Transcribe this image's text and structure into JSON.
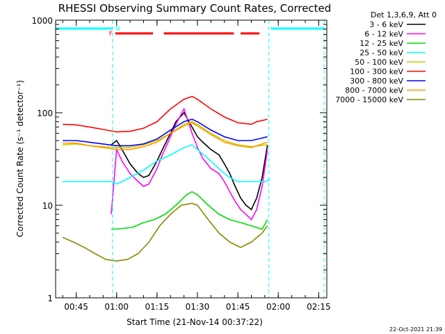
{
  "chart_data": {
    "type": "line",
    "title": "RHESSI Observing Summary Count Rates, Corrected",
    "xlabel": "Start Time (21-Nov-14 00:37:22)",
    "ylabel": "Corrected Count Rate (s⁻¹ detector⁻¹)",
    "yscale": "log",
    "ylim": [
      1,
      1000
    ],
    "xlim_minutes": [
      37.37,
      138
    ],
    "x_units": "minutes after 00:00 UT",
    "x_ticks": [
      {
        "label": "00:45",
        "minute": 45
      },
      {
        "label": "01:00",
        "minute": 60
      },
      {
        "label": "01:15",
        "minute": 75
      },
      {
        "label": "01:30",
        "minute": 90
      },
      {
        "label": "01:45",
        "minute": 105
      },
      {
        "label": "02:00",
        "minute": 120
      },
      {
        "label": "02:15",
        "minute": 135
      }
    ],
    "y_ticks": [
      {
        "label": "1",
        "value": 1
      },
      {
        "label": "10",
        "value": 10
      },
      {
        "label": "100",
        "value": 100
      },
      {
        "label": "1000",
        "value": 1000
      }
    ],
    "grid": false,
    "legend_position": "outside-right",
    "legend_title": "Det 1,3,6,9, Att 0",
    "series": [
      {
        "name": "3 - 6 keV",
        "color": "#000000",
        "x": [
          58,
          60,
          62,
          65,
          68,
          70,
          72,
          75,
          77,
          80,
          82,
          85,
          88,
          90,
          92,
          95,
          98,
          100,
          102,
          104,
          106,
          108,
          110,
          112,
          114,
          116
        ],
        "y": [
          45,
          50,
          40,
          28,
          22,
          20,
          21,
          30,
          40,
          60,
          80,
          100,
          70,
          55,
          48,
          40,
          35,
          28,
          22,
          16,
          12,
          10,
          9,
          12,
          20,
          45
        ]
      },
      {
        "name": "6 - 12 keV",
        "color": "#ff00ff",
        "x": [
          58,
          60,
          62,
          65,
          68,
          70,
          72,
          75,
          77,
          80,
          82,
          85,
          88,
          90,
          92,
          95,
          98,
          100,
          102,
          104,
          106,
          108,
          110,
          112,
          114,
          116
        ],
        "y": [
          8,
          40,
          30,
          22,
          18,
          16,
          17,
          25,
          35,
          55,
          75,
          110,
          60,
          42,
          32,
          25,
          22,
          18,
          14,
          11,
          9,
          8,
          7,
          9,
          16,
          40
        ]
      },
      {
        "name": "12 - 25 keV",
        "color": "#00dd00",
        "x": [
          58,
          62,
          66,
          70,
          74,
          78,
          82,
          86,
          88,
          90,
          94,
          98,
          102,
          106,
          110,
          114,
          116
        ],
        "y": [
          5.5,
          5.6,
          5.8,
          6.5,
          7,
          8,
          10,
          13,
          14,
          13,
          10,
          8,
          7,
          6.5,
          6,
          5.5,
          7
        ]
      },
      {
        "name": "25 - 50 keV",
        "color": "#00ffff",
        "x": [
          40,
          45,
          50,
          55,
          58,
          60,
          62,
          65,
          70,
          75,
          80,
          85,
          88,
          90,
          95,
          100,
          102,
          105,
          110,
          115,
          117
        ],
        "y": [
          18,
          18,
          18,
          18,
          18,
          17,
          18,
          20,
          24,
          30,
          35,
          42,
          45,
          40,
          30,
          22,
          20,
          18,
          18,
          18,
          19
        ]
      },
      {
        "name": "50 - 100 keV",
        "color": "#cccc00",
        "x": [
          40,
          45,
          50,
          55,
          60,
          65,
          70,
          75,
          80,
          85,
          88,
          90,
          95,
          100,
          105,
          110,
          116
        ],
        "y": [
          45,
          46,
          44,
          43,
          42,
          42,
          45,
          50,
          60,
          75,
          80,
          75,
          60,
          50,
          45,
          43,
          45
        ]
      },
      {
        "name": "100 - 300 keV",
        "color": "#ff0000",
        "x": [
          40,
          45,
          50,
          55,
          60,
          65,
          70,
          75,
          80,
          85,
          88,
          90,
          95,
          100,
          105,
          110,
          112,
          116
        ],
        "y": [
          75,
          74,
          70,
          66,
          62,
          63,
          68,
          80,
          110,
          140,
          150,
          140,
          110,
          90,
          78,
          75,
          80,
          85
        ]
      },
      {
        "name": "300 - 800 keV",
        "color": "#0000ff",
        "x": [
          40,
          45,
          50,
          55,
          60,
          65,
          70,
          75,
          80,
          85,
          88,
          90,
          95,
          100,
          105,
          110,
          116
        ],
        "y": [
          50,
          50,
          48,
          46,
          44,
          44,
          46,
          52,
          65,
          80,
          85,
          80,
          65,
          55,
          50,
          50,
          55
        ]
      },
      {
        "name": "800 - 7000 keV",
        "color": "#ff9900",
        "x": [
          40,
          45,
          50,
          55,
          60,
          65,
          70,
          75,
          80,
          85,
          88,
          90,
          95,
          100,
          105,
          110,
          116
        ],
        "y": [
          47,
          47,
          44,
          42,
          40,
          40,
          43,
          48,
          60,
          72,
          78,
          72,
          58,
          48,
          44,
          42,
          48
        ]
      },
      {
        "name": "7000 - 15000 keV",
        "color": "#888800",
        "x": [
          40,
          44,
          48,
          52,
          56,
          60,
          64,
          68,
          72,
          76,
          80,
          84,
          88,
          90,
          94,
          98,
          102,
          106,
          110,
          114,
          116
        ],
        "y": [
          4.5,
          4,
          3.5,
          3,
          2.6,
          2.5,
          2.6,
          3,
          4,
          6,
          8,
          10,
          10.5,
          10,
          7,
          5,
          4,
          3.5,
          4,
          5,
          6
        ]
      }
    ],
    "flag_bars": [
      {
        "label": "N",
        "color": "#00ffff",
        "segments": [
          [
            37.37,
            58.5
          ],
          [
            117.2,
            137
          ]
        ]
      },
      {
        "label": "F",
        "color": "#ff0000",
        "segments": [
          [
            59.5,
            73.5
          ],
          [
            77.5,
            103.5
          ],
          [
            106,
            113
          ]
        ]
      }
    ],
    "vlines_minutes": [
      58.5,
      116.5,
      137
    ]
  },
  "date_stamp": "22-Oct-2021 21:39"
}
